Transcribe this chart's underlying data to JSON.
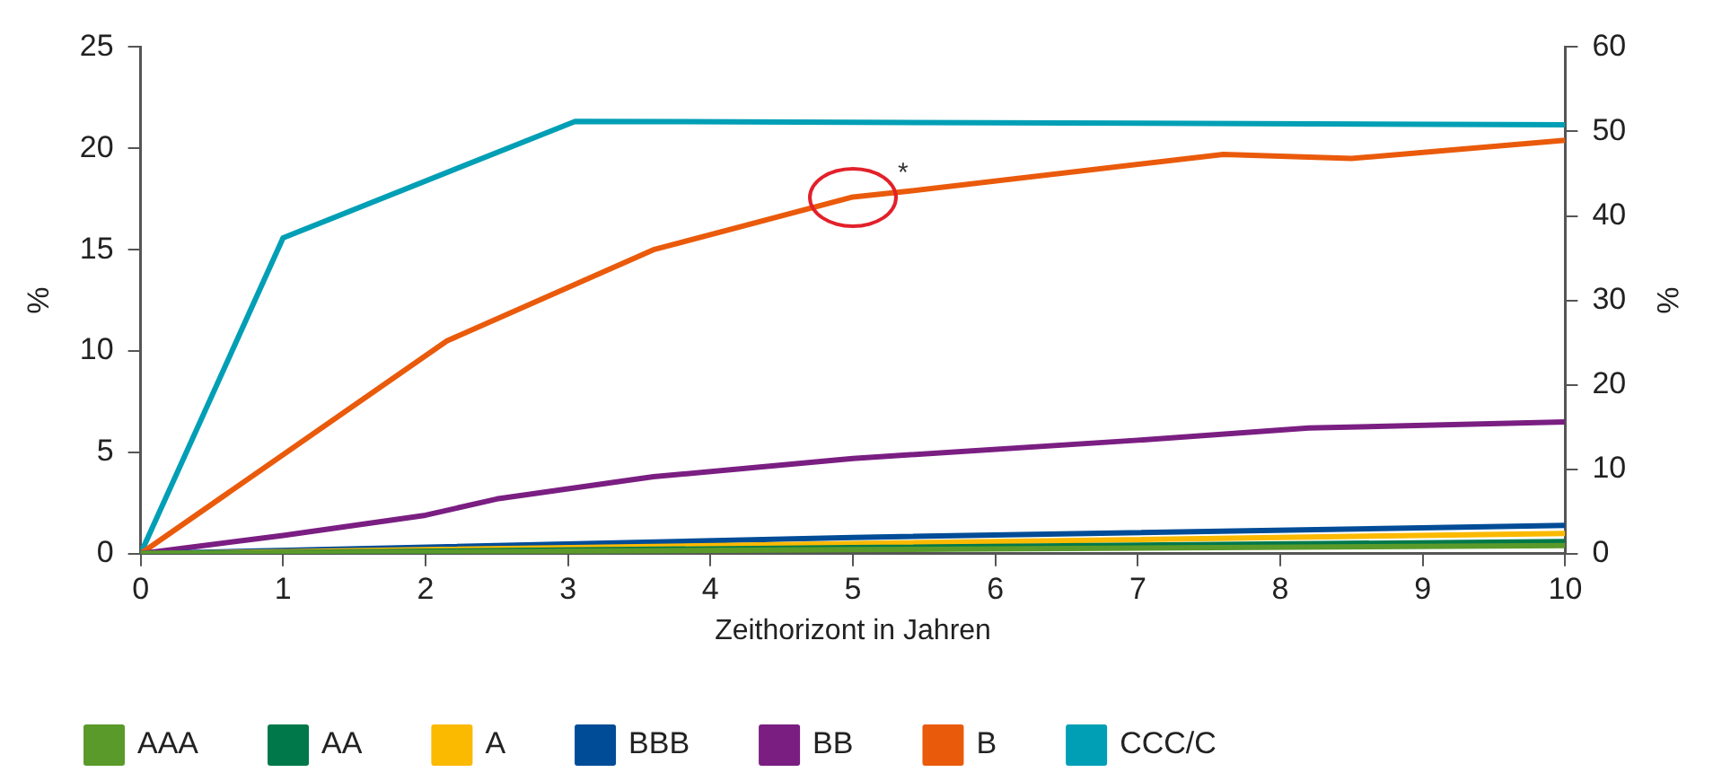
{
  "chart_data": {
    "type": "line",
    "xlabel": "Zeithorizont in Jahren",
    "ylabel": "%",
    "y2label": "%",
    "xlim": [
      0,
      10
    ],
    "xticks": [
      0,
      1,
      2,
      3,
      4,
      5,
      6,
      7,
      8,
      9,
      10
    ],
    "ylim": [
      0,
      25
    ],
    "yticks": [
      0,
      5,
      10,
      15,
      20,
      25
    ],
    "y2lim": [
      0,
      60
    ],
    "y2ticks": [
      0,
      10,
      20,
      30,
      40,
      50,
      60
    ],
    "grid": false,
    "legend": "bottom",
    "marker": "none",
    "line_style": "solid",
    "annotations": [
      {
        "text": "*",
        "x": 5,
        "y": 17.6
      }
    ],
    "series": [
      {
        "name": "AAA",
        "color": "#5a9a2a",
        "x": [
          0,
          5,
          10
        ],
        "values": [
          0,
          0.2,
          0.4
        ]
      },
      {
        "name": "AA",
        "color": "#00784a",
        "x": [
          0,
          5,
          10
        ],
        "values": [
          0,
          0.3,
          0.6
        ]
      },
      {
        "name": "A",
        "color": "#fbb900",
        "x": [
          0,
          5,
          10
        ],
        "values": [
          0,
          0.5,
          1.0
        ]
      },
      {
        "name": "BBB",
        "color": "#004c97",
        "x": [
          0,
          5,
          10
        ],
        "values": [
          0,
          0.8,
          1.4
        ]
      },
      {
        "name": "BB",
        "color": "#7a1e82",
        "x": [
          0,
          1,
          2,
          2.5,
          3,
          3.6,
          5,
          7,
          8.2,
          10
        ],
        "values": [
          0,
          0.9,
          1.9,
          2.7,
          3.2,
          3.8,
          4.7,
          5.6,
          6.2,
          6.5
        ]
      },
      {
        "name": "B",
        "color": "#ea5a0b",
        "x": [
          0,
          2.15,
          3.6,
          5,
          5.4,
          7.6,
          8.5,
          10
        ],
        "values": [
          0,
          10.5,
          15.0,
          17.6,
          17.9,
          19.7,
          19.5,
          20.4
        ]
      },
      {
        "name": "CCC/C",
        "color": "#009fb5",
        "axis": "y2",
        "x": [
          0,
          1,
          3.05,
          10
        ],
        "values": [
          0,
          37.4,
          51.2,
          50.8
        ]
      }
    ]
  }
}
